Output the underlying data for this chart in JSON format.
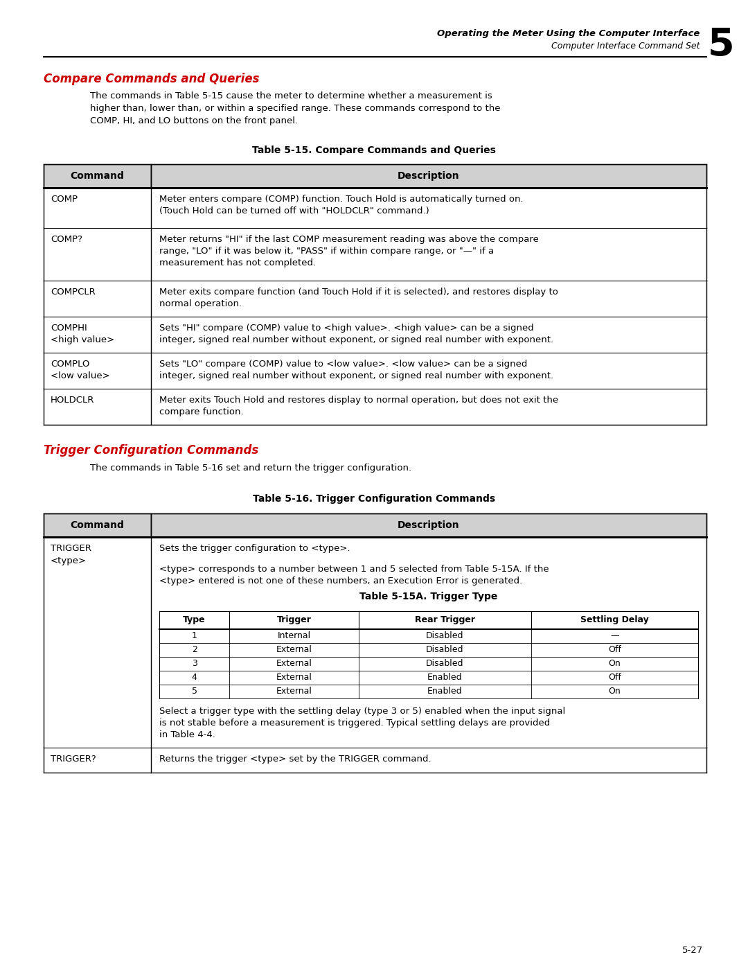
{
  "header_title1": "Operating the Meter Using the Computer Interface",
  "header_title2": "Computer Interface Command Set",
  "chapter_num": "5",
  "section1_title": "Compare Commands and Queries",
  "section1_body1": "The commands in Table 5-15 cause the meter to determine whether a measurement is",
  "section1_body2": "higher than, lower than, or within a specified range. These commands correspond to the",
  "section1_body3": "COMP, HI, and LO buttons on the front panel.",
  "table1_title": "Table 5-15. Compare Commands and Queries",
  "table1_col1_header": "Command",
  "table1_col2_header": "Description",
  "table1_rows": [
    {
      "cmd": [
        "COMP"
      ],
      "desc": [
        "Meter enters compare (COMP) function. Touch Hold is automatically turned on.",
        "(Touch Hold can be turned off with \"HOLDCLR\" command.)"
      ]
    },
    {
      "cmd": [
        "COMP?"
      ],
      "desc": [
        "Meter returns \"HI\" if the last COMP measurement reading was above the compare",
        "range, \"LO\" if it was below it, \"PASS\" if within compare range, or \"—\" if a",
        "measurement has not completed."
      ]
    },
    {
      "cmd": [
        "COMPCLR"
      ],
      "desc": [
        "Meter exits compare function (and Touch Hold if it is selected), and restores display to",
        "normal operation."
      ]
    },
    {
      "cmd": [
        "COMPHI",
        "<high value>"
      ],
      "desc": [
        "Sets \"HI\" compare (COMP) value to <high value>. <high value> can be a signed",
        "integer, signed real number without exponent, or signed real number with exponent."
      ]
    },
    {
      "cmd": [
        "COMPLO",
        "<low value>"
      ],
      "desc": [
        "Sets \"LO\" compare (COMP) value to <low value>. <low value> can be a signed",
        "integer, signed real number without exponent, or signed real number with exponent."
      ]
    },
    {
      "cmd": [
        "HOLDCLR"
      ],
      "desc": [
        "Meter exits Touch Hold and restores display to normal operation, but does not exit the",
        "compare function."
      ]
    }
  ],
  "section2_title": "Trigger Configuration Commands",
  "section2_body": "The commands in Table 5-16 set and return the trigger configuration.",
  "table2_title": "Table 5-16. Trigger Configuration Commands",
  "table2_col1_header": "Command",
  "table2_col2_header": "Description",
  "trigger_cmd": [
    "TRIGGER",
    "<type>"
  ],
  "trigger_desc1": "Sets the trigger configuration to <type>.",
  "trigger_desc2a": "<type> corresponds to a number between 1 and 5 selected from Table 5-15A. If the",
  "trigger_desc2b": "<type> entered is not one of these numbers, an Execution Error is generated.",
  "table_15a_title": "Table 5-15A. Trigger Type",
  "table_15a_headers": [
    "Type",
    "Trigger",
    "Rear Trigger",
    "Settling Delay"
  ],
  "table_15a_rows": [
    [
      "1",
      "Internal",
      "Disabled",
      "—"
    ],
    [
      "2",
      "External",
      "Disabled",
      "Off"
    ],
    [
      "3",
      "External",
      "Disabled",
      "On"
    ],
    [
      "4",
      "External",
      "Enabled",
      "Off"
    ],
    [
      "5",
      "External",
      "Enabled",
      "On"
    ]
  ],
  "trigger_desc4a": "Select a trigger type with the settling delay (type 3 or 5) enabled when the input signal",
  "trigger_desc4b": "is not stable before a measurement is triggered. Typical settling delays are provided",
  "trigger_desc4c": "in Table 4-4.",
  "trigger2_cmd": "TRIGGER?",
  "trigger2_desc": "Returns the trigger <type> set by the TRIGGER command.",
  "page_number": "5-27",
  "red_color": "#CC0000",
  "black": "#000000",
  "white": "#FFFFFF",
  "header_gray": "#D0D0D0"
}
